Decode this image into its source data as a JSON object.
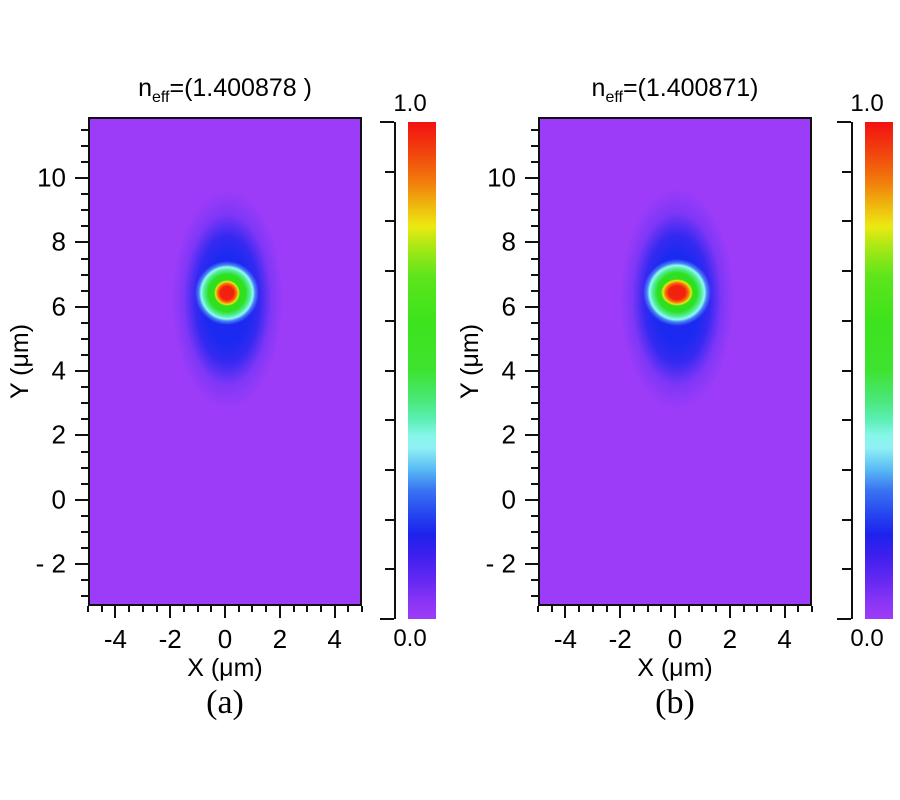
{
  "figure": {
    "background_color": "#ffffff",
    "field_background_color": "#9d3cf8",
    "frame_color": "#101010",
    "hot_spot_colors": {
      "core_red": "#f3220f",
      "ring_yellow": "#ece90f",
      "ring_green": "#2ee01d",
      "ring_cyan": "#93f8f0",
      "halo_blue": "#1c2af1"
    }
  },
  "colormap_stops": [
    [
      1.0,
      "#f21111"
    ],
    [
      0.94,
      "#f2420e"
    ],
    [
      0.88,
      "#f27c0b"
    ],
    [
      0.82,
      "#eec60f"
    ],
    [
      0.79,
      "#ece911"
    ],
    [
      0.75,
      "#aae815"
    ],
    [
      0.69,
      "#5ee51b"
    ],
    [
      0.6,
      "#3de31c"
    ],
    [
      0.5,
      "#3ee330"
    ],
    [
      0.44,
      "#49e87a"
    ],
    [
      0.4,
      "#5defb6"
    ],
    [
      0.37,
      "#85f6e8"
    ],
    [
      0.345,
      "#90f1f4"
    ],
    [
      0.3,
      "#58b9f4"
    ],
    [
      0.26,
      "#3a74f2"
    ],
    [
      0.21,
      "#2545f0"
    ],
    [
      0.17,
      "#1d22ec"
    ],
    [
      0.13,
      "#3c1fee"
    ],
    [
      0.08,
      "#6328f2"
    ],
    [
      0.03,
      "#8d36f6"
    ],
    [
      0.0,
      "#9e3bf8"
    ]
  ],
  "panels": [
    {
      "caption": "(a)",
      "title": {
        "base": "n",
        "sub": "eff",
        "rest": "=(1.400878 )"
      },
      "xlabel": "X (μm)",
      "ylabel": "Y (μm)",
      "x_range": [
        -5,
        5
      ],
      "y_range": [
        -3.3,
        11.9
      ],
      "x_major_ticks": [
        -4,
        -2,
        0,
        2,
        4
      ],
      "x_tick_labels": [
        "-4",
        "-2",
        "0",
        "2",
        "4"
      ],
      "x_minor_step": 0.5,
      "y_major_ticks": [
        10,
        8,
        6,
        4,
        2,
        0,
        -2
      ],
      "y_tick_labels": [
        "10",
        "8",
        "6",
        "4",
        "2",
        "0",
        "- 2"
      ],
      "y_minor_step": 0.5,
      "colorbar": {
        "max_label": "1.0",
        "min_label": "0.0",
        "tick_count": 11
      },
      "spot": {
        "x_um": 0,
        "y_um": 6.5,
        "core_rx_um": 0.46,
        "core_ry_um": 0.4,
        "ring_rx_um": 1.17,
        "ring_ry_um": 1.0,
        "halo_rx_um": 2.1,
        "halo_ry_um": 3.5,
        "halo_dy_um": 0.2
      }
    },
    {
      "caption": "(b)",
      "title": {
        "base": "n",
        "sub": "eff",
        "rest": "=(1.400871)"
      },
      "xlabel": "X (μm)",
      "ylabel": "Y (μm)",
      "x_range": [
        -5,
        5
      ],
      "y_range": [
        -3.3,
        11.9
      ],
      "x_major_ticks": [
        -4,
        -2,
        0,
        2,
        4
      ],
      "x_tick_labels": [
        "-4",
        "-2",
        "0",
        "2",
        "4"
      ],
      "x_minor_step": 0.5,
      "y_major_ticks": [
        10,
        8,
        6,
        4,
        2,
        0,
        -2
      ],
      "y_tick_labels": [
        "10",
        "8",
        "6",
        "4",
        "2",
        "0",
        "- 2"
      ],
      "y_minor_step": 0.5,
      "colorbar": {
        "max_label": "1.0",
        "min_label": "0.0",
        "tick_count": 11
      },
      "spot": {
        "x_um": 0,
        "y_um": 6.5,
        "core_rx_um": 0.6,
        "core_ry_um": 0.42,
        "ring_rx_um": 1.24,
        "ring_ry_um": 1.05,
        "halo_rx_um": 2.15,
        "halo_ry_um": 3.55,
        "halo_dy_um": 0.2
      }
    }
  ],
  "chart_data": [
    {
      "type": "heatmap",
      "title": "n_eff=(1.400878)",
      "xlabel": "X (μm)",
      "ylabel": "Y (μm)",
      "x_range": [
        -5,
        5
      ],
      "y_range": [
        -3.3,
        11.9
      ],
      "x_ticks": [
        -4,
        -2,
        0,
        2,
        4
      ],
      "y_ticks": [
        10,
        8,
        6,
        4,
        2,
        0,
        -2
      ],
      "colorbar": {
        "min": 0.0,
        "max": 1.0,
        "min_label": "0.0",
        "max_label": "1.0",
        "colormap": "rainbow (violet-blue-cyan-green-yellow-red)",
        "position": "right"
      },
      "field": "normalized mode intensity",
      "peak": {
        "x": 0,
        "y": 6.5,
        "value": 1.0
      },
      "mode_core_radius_um": 1.2,
      "background_value": 0.0,
      "caption": "(a)",
      "grid": false
    },
    {
      "type": "heatmap",
      "title": "n_eff=(1.400871)",
      "xlabel": "X (μm)",
      "ylabel": "Y (μm)",
      "x_range": [
        -5,
        5
      ],
      "y_range": [
        -3.3,
        11.9
      ],
      "x_ticks": [
        -4,
        -2,
        0,
        2,
        4
      ],
      "y_ticks": [
        10,
        8,
        6,
        4,
        2,
        0,
        -2
      ],
      "colorbar": {
        "min": 0.0,
        "max": 1.0,
        "min_label": "0.0",
        "max_label": "1.0",
        "colormap": "rainbow (violet-blue-cyan-green-yellow-red)",
        "position": "right"
      },
      "field": "normalized mode intensity",
      "peak": {
        "x": 0,
        "y": 6.5,
        "value": 1.0
      },
      "mode_core_radius_um": 1.3,
      "background_value": 0.0,
      "caption": "(b)",
      "grid": false
    }
  ]
}
